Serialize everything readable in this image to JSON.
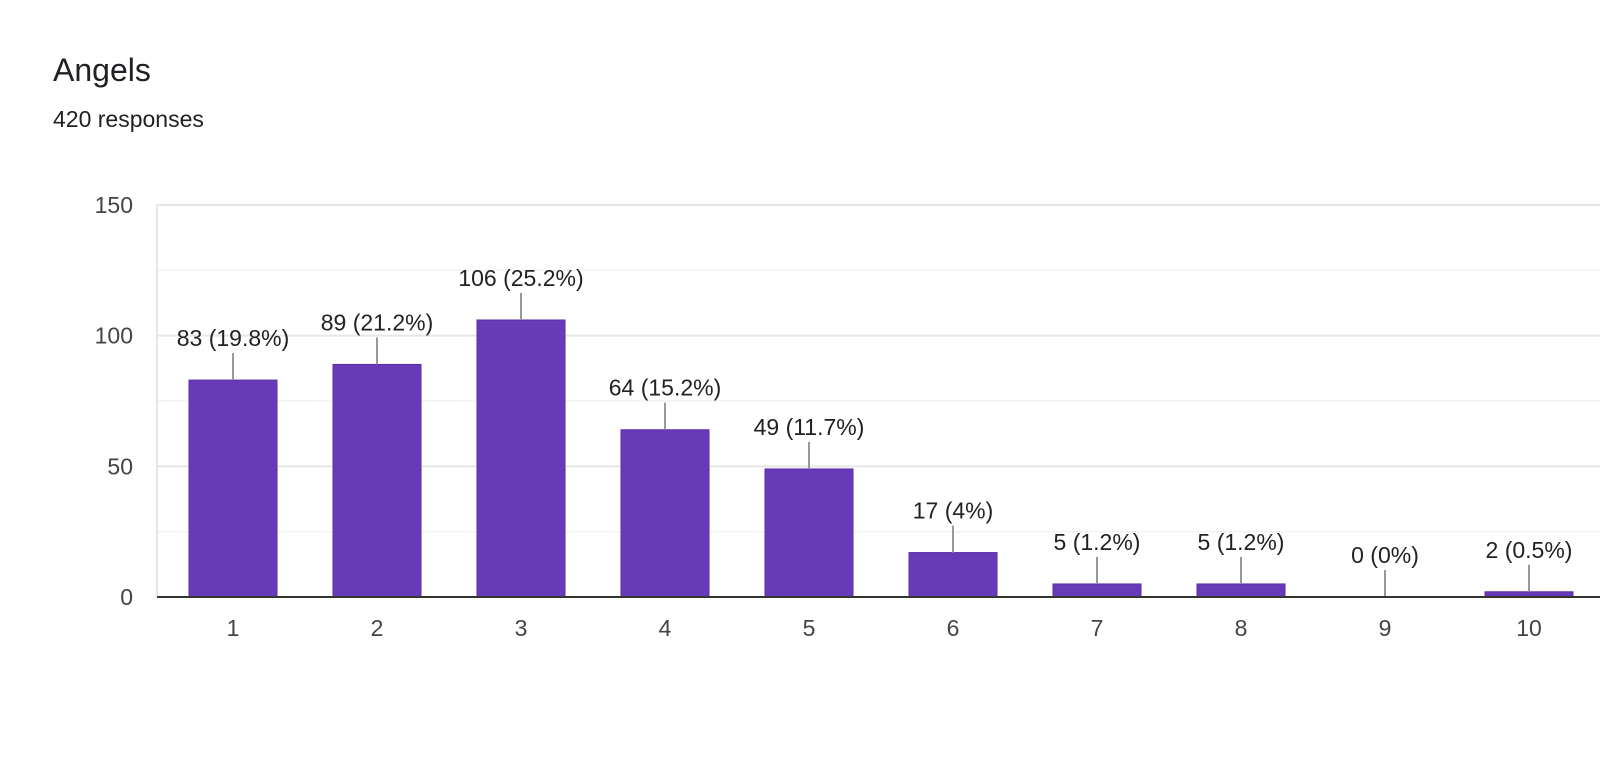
{
  "header": {
    "title": "Angels",
    "subtitle": "420 responses"
  },
  "colors": {
    "bar": "#673ab7",
    "bar_stroke": "#5a2ca8",
    "grid_major": "#e6e6e6",
    "grid_minor": "#f2f2f2",
    "axis": "#333333",
    "leader": "#999999"
  },
  "chart_data": {
    "type": "bar",
    "title": "Angels",
    "subtitle": "420 responses",
    "categories": [
      "1",
      "2",
      "3",
      "4",
      "5",
      "6",
      "7",
      "8",
      "9",
      "10"
    ],
    "values": [
      83,
      89,
      106,
      64,
      49,
      17,
      5,
      5,
      0,
      2
    ],
    "data_labels": [
      "83 (19.8%)",
      "89 (21.2%)",
      "106 (25.2%)",
      "64 (15.2%)",
      "49 (11.7%)",
      "17 (4%)",
      "5 (1.2%)",
      "5 (1.2%)",
      "0 (0%)",
      "2 (0.5%)"
    ],
    "ylim": [
      0,
      150
    ],
    "yticks": [
      0,
      50,
      100,
      150
    ],
    "grid": true,
    "legend": "none"
  }
}
